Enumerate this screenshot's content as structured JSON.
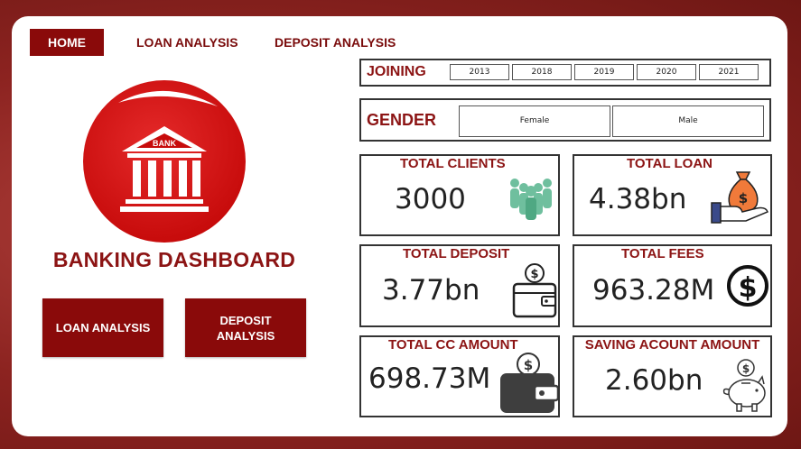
{
  "nav": {
    "home": "HOME",
    "loan_analysis": "LOAN ANALYSIS",
    "deposit_analysis": "DEPOSIT ANALYSIS"
  },
  "logo": {
    "bank_text": "BANK"
  },
  "dashboard_title": "BANKING DASHBOARD",
  "buttons": {
    "loan_analysis": "LOAN ANALYSIS",
    "deposit_line1": "DEPOSIT",
    "deposit_line2": "ANALYSIS"
  },
  "joining": {
    "label": "JOINING",
    "years": [
      "2013",
      "2018",
      "2019",
      "2020",
      "2021"
    ]
  },
  "gender": {
    "label": "GENDER",
    "options": [
      "Female",
      "Male"
    ]
  },
  "kpis": {
    "total_clients": {
      "title": "TOTAL CLIENTS",
      "value": "3000",
      "icon": "people-icon"
    },
    "total_loan": {
      "title": "TOTAL LOAN",
      "value": "4.38bn",
      "icon": "money-bag-hand-icon"
    },
    "total_deposit": {
      "title": "TOTAL DEPOSIT",
      "value": "3.77bn",
      "icon": "wallet-coin-icon"
    },
    "total_fees": {
      "title": "TOTAL  FEES",
      "value": "963.28M",
      "icon": "dollar-circle-icon"
    },
    "total_cc_amount": {
      "title": "TOTAL CC AMOUNT",
      "value": "698.73M",
      "icon": "wallet-dollar-icon"
    },
    "saving_account_amount": {
      "title": "SAVING ACOUNT AMOUNT",
      "value": "2.60bn",
      "icon": "piggy-bank-icon"
    }
  },
  "colors": {
    "brand_red": "#8a0a0a",
    "title_red": "#8c1414",
    "teal": "#6fbf9e",
    "orange": "#f07a3a"
  }
}
